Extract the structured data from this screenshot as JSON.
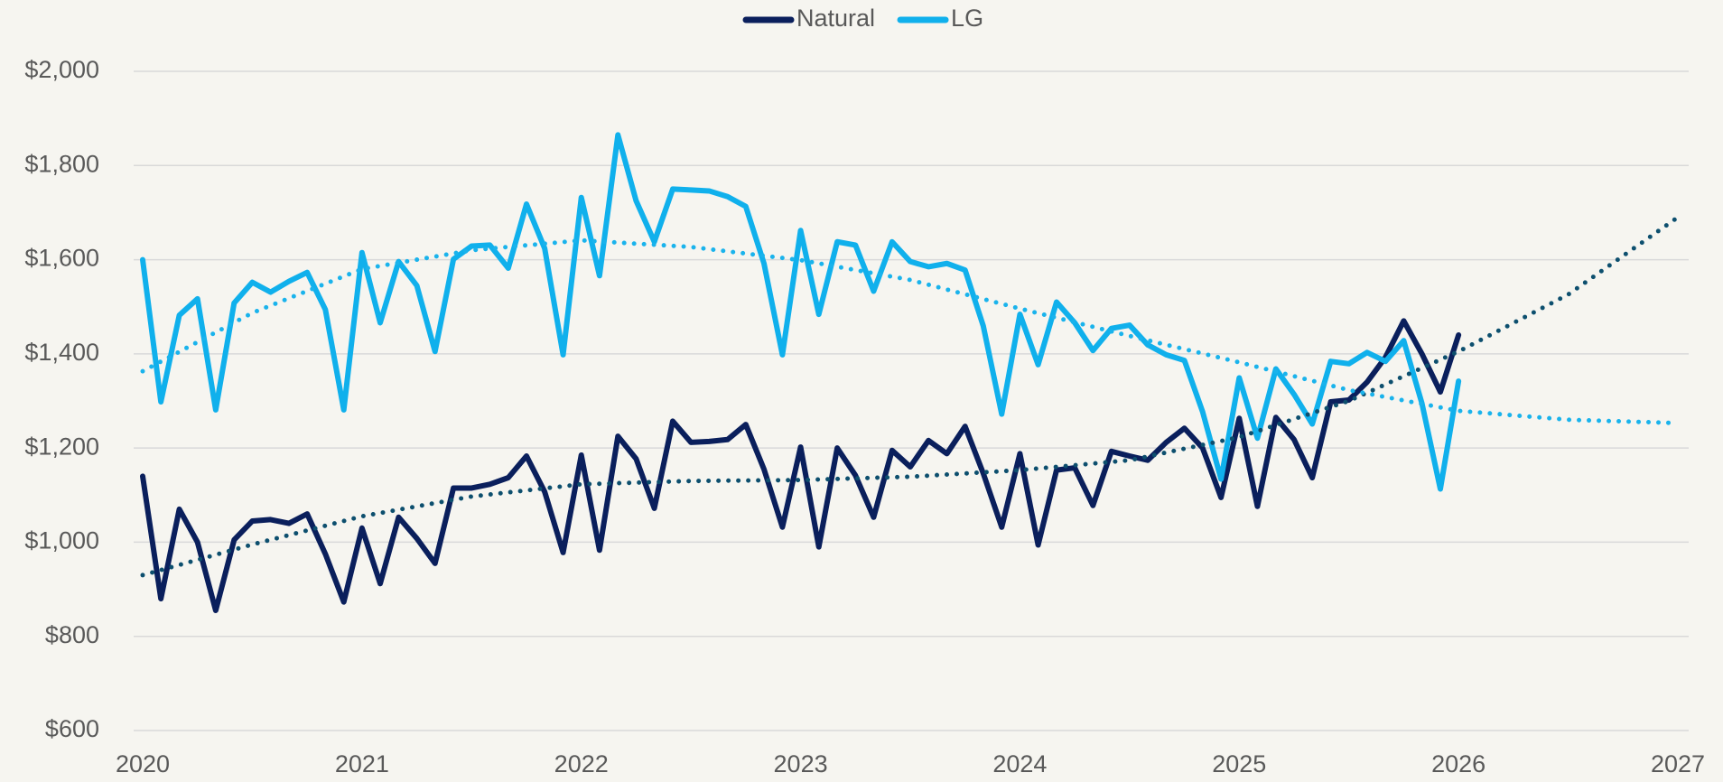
{
  "chart_data": {
    "type": "line",
    "series": [
      {
        "name": "Natural",
        "color": "#0a1f5c",
        "x": [
          2020,
          2020.083,
          2020.167,
          2020.25,
          2020.333,
          2020.417,
          2020.5,
          2020.583,
          2020.667,
          2020.75,
          2020.833,
          2020.917,
          2021,
          2021.083,
          2021.167,
          2021.25,
          2021.333,
          2021.417,
          2021.5,
          2021.583,
          2021.667,
          2021.75,
          2021.833,
          2021.917,
          2022,
          2022.083,
          2022.167,
          2022.25,
          2022.333,
          2022.417,
          2022.5,
          2022.583,
          2022.667,
          2022.75,
          2022.833,
          2022.917,
          2023,
          2023.083,
          2023.167,
          2023.25,
          2023.333,
          2023.417,
          2023.5,
          2023.583,
          2023.667,
          2023.75,
          2023.833,
          2023.917,
          2024,
          2024.083,
          2024.167,
          2024.25,
          2024.333,
          2024.417,
          2024.5,
          2024.583,
          2024.667,
          2024.75,
          2024.833,
          2024.917,
          2025,
          2025.083,
          2025.167,
          2025.25,
          2025.333,
          2025.417,
          2025.5,
          2025.583,
          2025.667,
          2025.75,
          2025.833,
          2025.917,
          2026
        ],
        "values": [
          1140,
          880,
          1070,
          1000,
          855,
          1005,
          1045,
          1048,
          1040,
          1060,
          975,
          873,
          1030,
          912,
          1053,
          1008,
          955,
          1115,
          1115,
          1123,
          1137,
          1183,
          1107,
          978,
          1185,
          983,
          1225,
          1177,
          1072,
          1257,
          1212,
          1214,
          1218,
          1250,
          1155,
          1032,
          1202,
          990,
          1200,
          1142,
          1053,
          1195,
          1160,
          1216,
          1188,
          1246,
          1146,
          1032,
          1188,
          994,
          1153,
          1158,
          1078,
          1193,
          1183,
          1174,
          1212,
          1242,
          1200,
          1095,
          1263,
          1076,
          1265,
          1218,
          1137,
          1298,
          1302,
          1340,
          1393,
          1470,
          1400,
          1319,
          1440
        ]
      },
      {
        "name": "LG",
        "color": "#10b0ec",
        "x": [
          2020,
          2020.083,
          2020.167,
          2020.25,
          2020.333,
          2020.417,
          2020.5,
          2020.583,
          2020.667,
          2020.75,
          2020.833,
          2020.917,
          2021,
          2021.083,
          2021.167,
          2021.25,
          2021.333,
          2021.417,
          2021.5,
          2021.583,
          2021.667,
          2021.75,
          2021.833,
          2021.917,
          2022,
          2022.083,
          2022.167,
          2022.25,
          2022.333,
          2022.417,
          2022.5,
          2022.583,
          2022.667,
          2022.75,
          2022.833,
          2022.917,
          2023,
          2023.083,
          2023.167,
          2023.25,
          2023.333,
          2023.417,
          2023.5,
          2023.583,
          2023.667,
          2023.75,
          2023.833,
          2023.917,
          2024,
          2024.083,
          2024.167,
          2024.25,
          2024.333,
          2024.417,
          2024.5,
          2024.583,
          2024.667,
          2024.75,
          2024.833,
          2024.917,
          2025,
          2025.083,
          2025.167,
          2025.25,
          2025.333,
          2025.417,
          2025.5,
          2025.583,
          2025.667,
          2025.75,
          2025.833,
          2025.917,
          2026
        ],
        "values": [
          1600,
          1298,
          1482,
          1517,
          1281,
          1508,
          1552,
          1531,
          1554,
          1573,
          1494,
          1281,
          1615,
          1466,
          1596,
          1545,
          1405,
          1601,
          1629,
          1631,
          1582,
          1718,
          1624,
          1398,
          1732,
          1566,
          1865,
          1725,
          1638,
          1750,
          1748,
          1746,
          1734,
          1713,
          1592,
          1398,
          1662,
          1484,
          1638,
          1631,
          1533,
          1638,
          1596,
          1585,
          1592,
          1578,
          1459,
          1272,
          1484,
          1377,
          1510,
          1466,
          1407,
          1454,
          1461,
          1419,
          1398,
          1386,
          1277,
          1134,
          1349,
          1221,
          1368,
          1314,
          1251,
          1384,
          1379,
          1403,
          1384,
          1428,
          1295,
          1113,
          1342
        ]
      },
      {
        "color": "#0d4f6e",
        "dash": "dotted",
        "x": [
          2020,
          2020.5,
          2021,
          2021.5,
          2022,
          2022.5,
          2023,
          2023.5,
          2024,
          2024.5,
          2025,
          2025.5,
          2026,
          2026.5,
          2027
        ],
        "values": [
          930,
          995,
          1055,
          1097,
          1123,
          1130,
          1132,
          1139,
          1153,
          1174,
          1223,
          1300,
          1405,
          1526,
          1690
        ]
      },
      {
        "color": "#1ab3ec",
        "dash": "dotted",
        "x": [
          2020,
          2020.5,
          2021,
          2021.5,
          2022,
          2022.5,
          2023,
          2023.5,
          2024,
          2024.5,
          2025,
          2025.5,
          2026,
          2026.5,
          2027
        ],
        "values": [
          1363,
          1487,
          1580,
          1620,
          1641,
          1627,
          1599,
          1557,
          1496,
          1438,
          1382,
          1323,
          1279,
          1260,
          1253
        ]
      }
    ],
    "xlim": [
      2020,
      2027
    ],
    "xticks": [
      2020,
      2021,
      2022,
      2023,
      2024,
      2025,
      2026,
      2027
    ],
    "ylim": [
      600,
      2000
    ],
    "yticks": [
      {
        "value": 600,
        "label": "$600"
      },
      {
        "value": 800,
        "label": "$800"
      },
      {
        "value": 1000,
        "label": "$1,000"
      },
      {
        "value": 1200,
        "label": "$1,200"
      },
      {
        "value": 1400,
        "label": "$1,400"
      },
      {
        "value": 1600,
        "label": "$1,600"
      },
      {
        "value": 1800,
        "label": "$1,800"
      },
      {
        "value": 2000,
        "label": "$2,000"
      }
    ],
    "grid": true,
    "legend": "top"
  }
}
